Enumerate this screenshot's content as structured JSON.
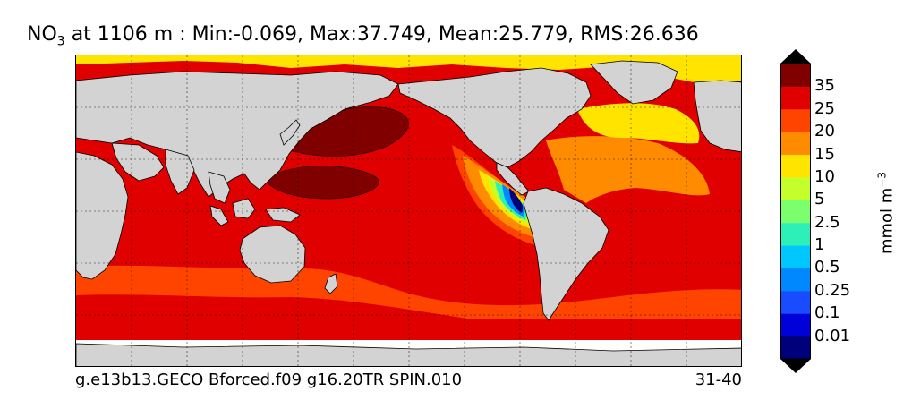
{
  "title": {
    "species": "NO",
    "species_sub": "3",
    "rest": " at 1106 m : Min:-0.069, Max:37.749, Mean:25.779, RMS:26.636"
  },
  "footer": {
    "run_id": "g.e13b13.GECO Bforced.f09 g16.20TR SPIN.010",
    "years": "31-40"
  },
  "colorbar": {
    "label_main": "mmol m",
    "label_exp": "−3",
    "ticks": [
      "0.01",
      "0.1",
      "0.25",
      "0.5",
      "1",
      "2.5",
      "5",
      "10",
      "15",
      "20",
      "25",
      "35"
    ],
    "colors": [
      "#00007a",
      "#0000d8",
      "#1a4cff",
      "#0088ff",
      "#00c8ff",
      "#2cf0b8",
      "#7cff6c",
      "#c4ff2c",
      "#ffe400",
      "#ff8c00",
      "#ff4400",
      "#e00000",
      "#800000"
    ],
    "extend": "both"
  },
  "map": {
    "projection": "cylindrical",
    "grid": true,
    "land_color": "#d3d3d3",
    "missing_color": "#ffffff"
  }
}
